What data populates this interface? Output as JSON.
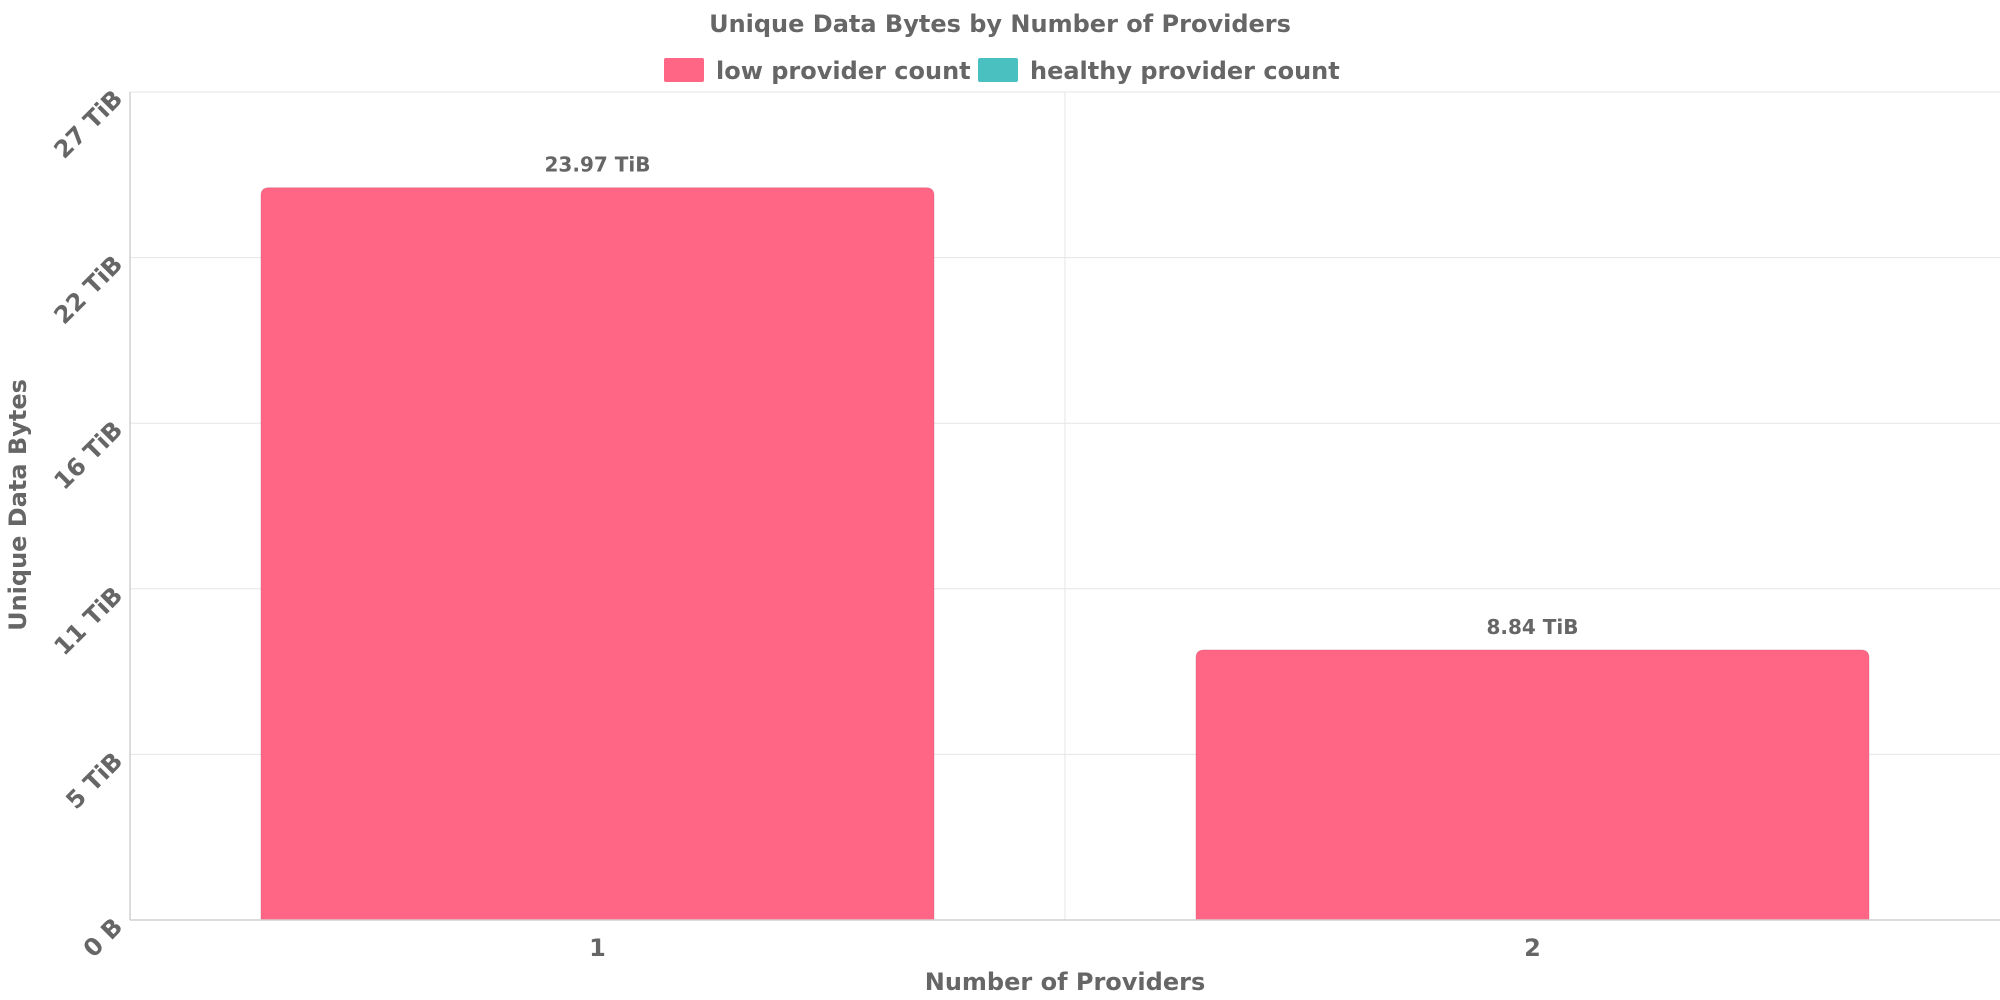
{
  "chart_data": {
    "type": "bar",
    "title": "Unique Data Bytes by Number of Providers",
    "xlabel": "Number of Providers",
    "ylabel": "Unique Data Bytes",
    "categories": [
      "1",
      "2"
    ],
    "series": [
      {
        "name": "low provider count",
        "color": "#ff6584",
        "values": [
          23.97,
          8.84
        ],
        "data_labels": [
          "23.97 TiB",
          "8.84 TiB"
        ]
      },
      {
        "name": "healthy provider count",
        "color": "#4bc0c0",
        "values": [
          null,
          null
        ],
        "data_labels": [
          "",
          ""
        ]
      }
    ],
    "y_unit": "TiB",
    "ylim": [
      0,
      27.1
    ],
    "y_ticks": [
      {
        "value": 0,
        "label": "0 B"
      },
      {
        "value": 5.42,
        "label": "5 TiB"
      },
      {
        "value": 10.84,
        "label": "11 TiB"
      },
      {
        "value": 16.26,
        "label": "16 TiB"
      },
      {
        "value": 21.68,
        "label": "22 TiB"
      },
      {
        "value": 27.1,
        "label": "27 TiB"
      }
    ],
    "grid": true,
    "legend_position": "top-center"
  }
}
